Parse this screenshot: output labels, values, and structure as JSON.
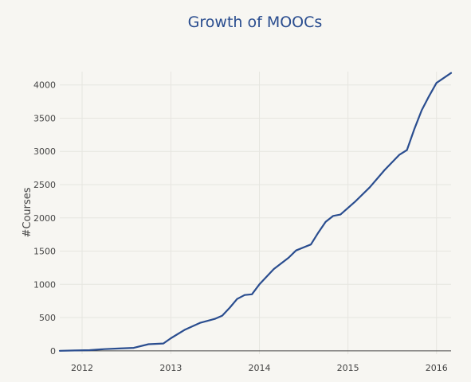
{
  "chart_data": {
    "type": "line",
    "title": "Growth of MOOCs",
    "xlabel": "",
    "ylabel": "#Courses",
    "xlim": [
      "2011-10-01",
      "2016-03-01"
    ],
    "ylim": [
      -50,
      4200
    ],
    "x_ticks": [
      "2012",
      "2013",
      "2014",
      "2015",
      "2016"
    ],
    "y_ticks": [
      0,
      500,
      1000,
      1500,
      2000,
      2500,
      3000,
      3500,
      4000
    ],
    "grid": true,
    "legend": "none",
    "series": [
      {
        "line_color": "#2a4d8f",
        "x": [
          "2011-10-01",
          "2011-12-01",
          "2012-02-01",
          "2012-04-01",
          "2012-06-01",
          "2012-08-01",
          "2012-10-01",
          "2012-12-01",
          "2013-01-01",
          "2013-03-01",
          "2013-05-01",
          "2013-07-01",
          "2013-08-01",
          "2013-09-01",
          "2013-10-01",
          "2013-11-01",
          "2013-12-01",
          "2014-01-01",
          "2014-03-01",
          "2014-05-01",
          "2014-06-01",
          "2014-08-01",
          "2014-09-01",
          "2014-10-01",
          "2014-11-01",
          "2014-12-01",
          "2015-02-01",
          "2015-04-01",
          "2015-06-01",
          "2015-08-01",
          "2015-09-01",
          "2015-10-01",
          "2015-11-01",
          "2015-12-01",
          "2016-01-01",
          "2016-03-01"
        ],
        "y": [
          0,
          5,
          10,
          25,
          35,
          45,
          100,
          110,
          190,
          320,
          420,
          480,
          530,
          650,
          780,
          840,
          850,
          1000,
          1230,
          1400,
          1510,
          1600,
          1780,
          1940,
          2030,
          2050,
          2250,
          2460,
          2720,
          2950,
          3020,
          3330,
          3620,
          3830,
          4030,
          4180
        ]
      }
    ]
  }
}
